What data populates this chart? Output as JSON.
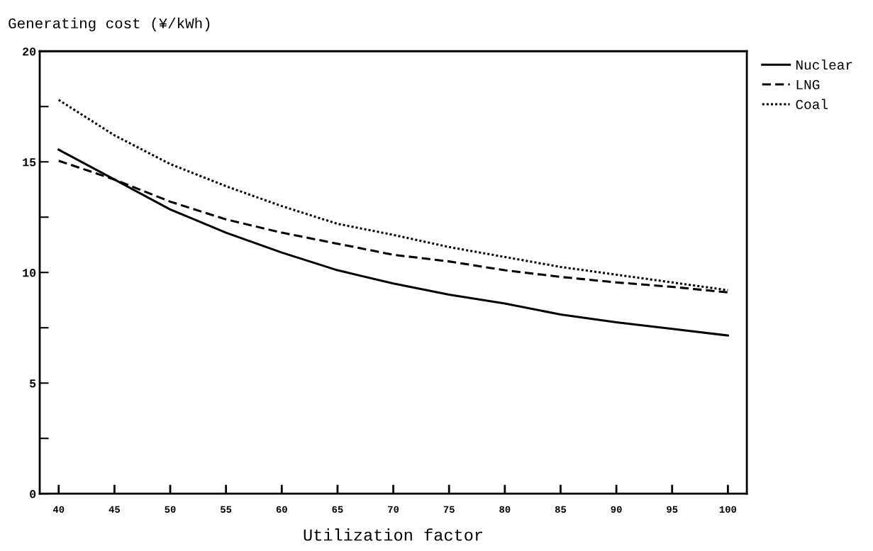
{
  "chart_data": {
    "type": "line",
    "ylabel": "Generating cost (¥/kWh)",
    "xlabel": "Utilization factor",
    "x": [
      40,
      45,
      50,
      55,
      60,
      65,
      70,
      75,
      80,
      85,
      90,
      95,
      100
    ],
    "series": [
      {
        "name": "Nuclear",
        "color": "#000000",
        "line_style": "solid",
        "values": [
          15.55,
          14.2,
          12.85,
          11.8,
          10.9,
          10.1,
          9.5,
          9.0,
          8.6,
          8.1,
          7.75,
          7.45,
          7.15
        ]
      },
      {
        "name": "LNG",
        "color": "#000000",
        "line_style": "dashed",
        "values": [
          15.05,
          14.2,
          13.2,
          12.4,
          11.8,
          11.3,
          10.8,
          10.5,
          10.1,
          9.8,
          9.55,
          9.35,
          9.1
        ]
      },
      {
        "name": "Coal",
        "color": "#000000",
        "line_style": "dotted",
        "values": [
          17.8,
          16.2,
          14.9,
          13.9,
          13.0,
          12.2,
          11.7,
          11.15,
          10.7,
          10.25,
          9.9,
          9.55,
          9.2
        ]
      }
    ],
    "xlim": [
      38.3,
      101.7
    ],
    "xticks": [
      40,
      45,
      50,
      55,
      60,
      65,
      70,
      75,
      80,
      85,
      90,
      95,
      100
    ],
    "ylim": [
      0,
      20
    ],
    "yticks": [
      0,
      {
        "value": 2.5,
        "label": null
      },
      5,
      {
        "value": 7.5,
        "label": null
      },
      10,
      {
        "value": 12.5,
        "label": null
      },
      15,
      {
        "value": 17.5,
        "label": null
      },
      20
    ],
    "grid": false,
    "legend": "right"
  }
}
